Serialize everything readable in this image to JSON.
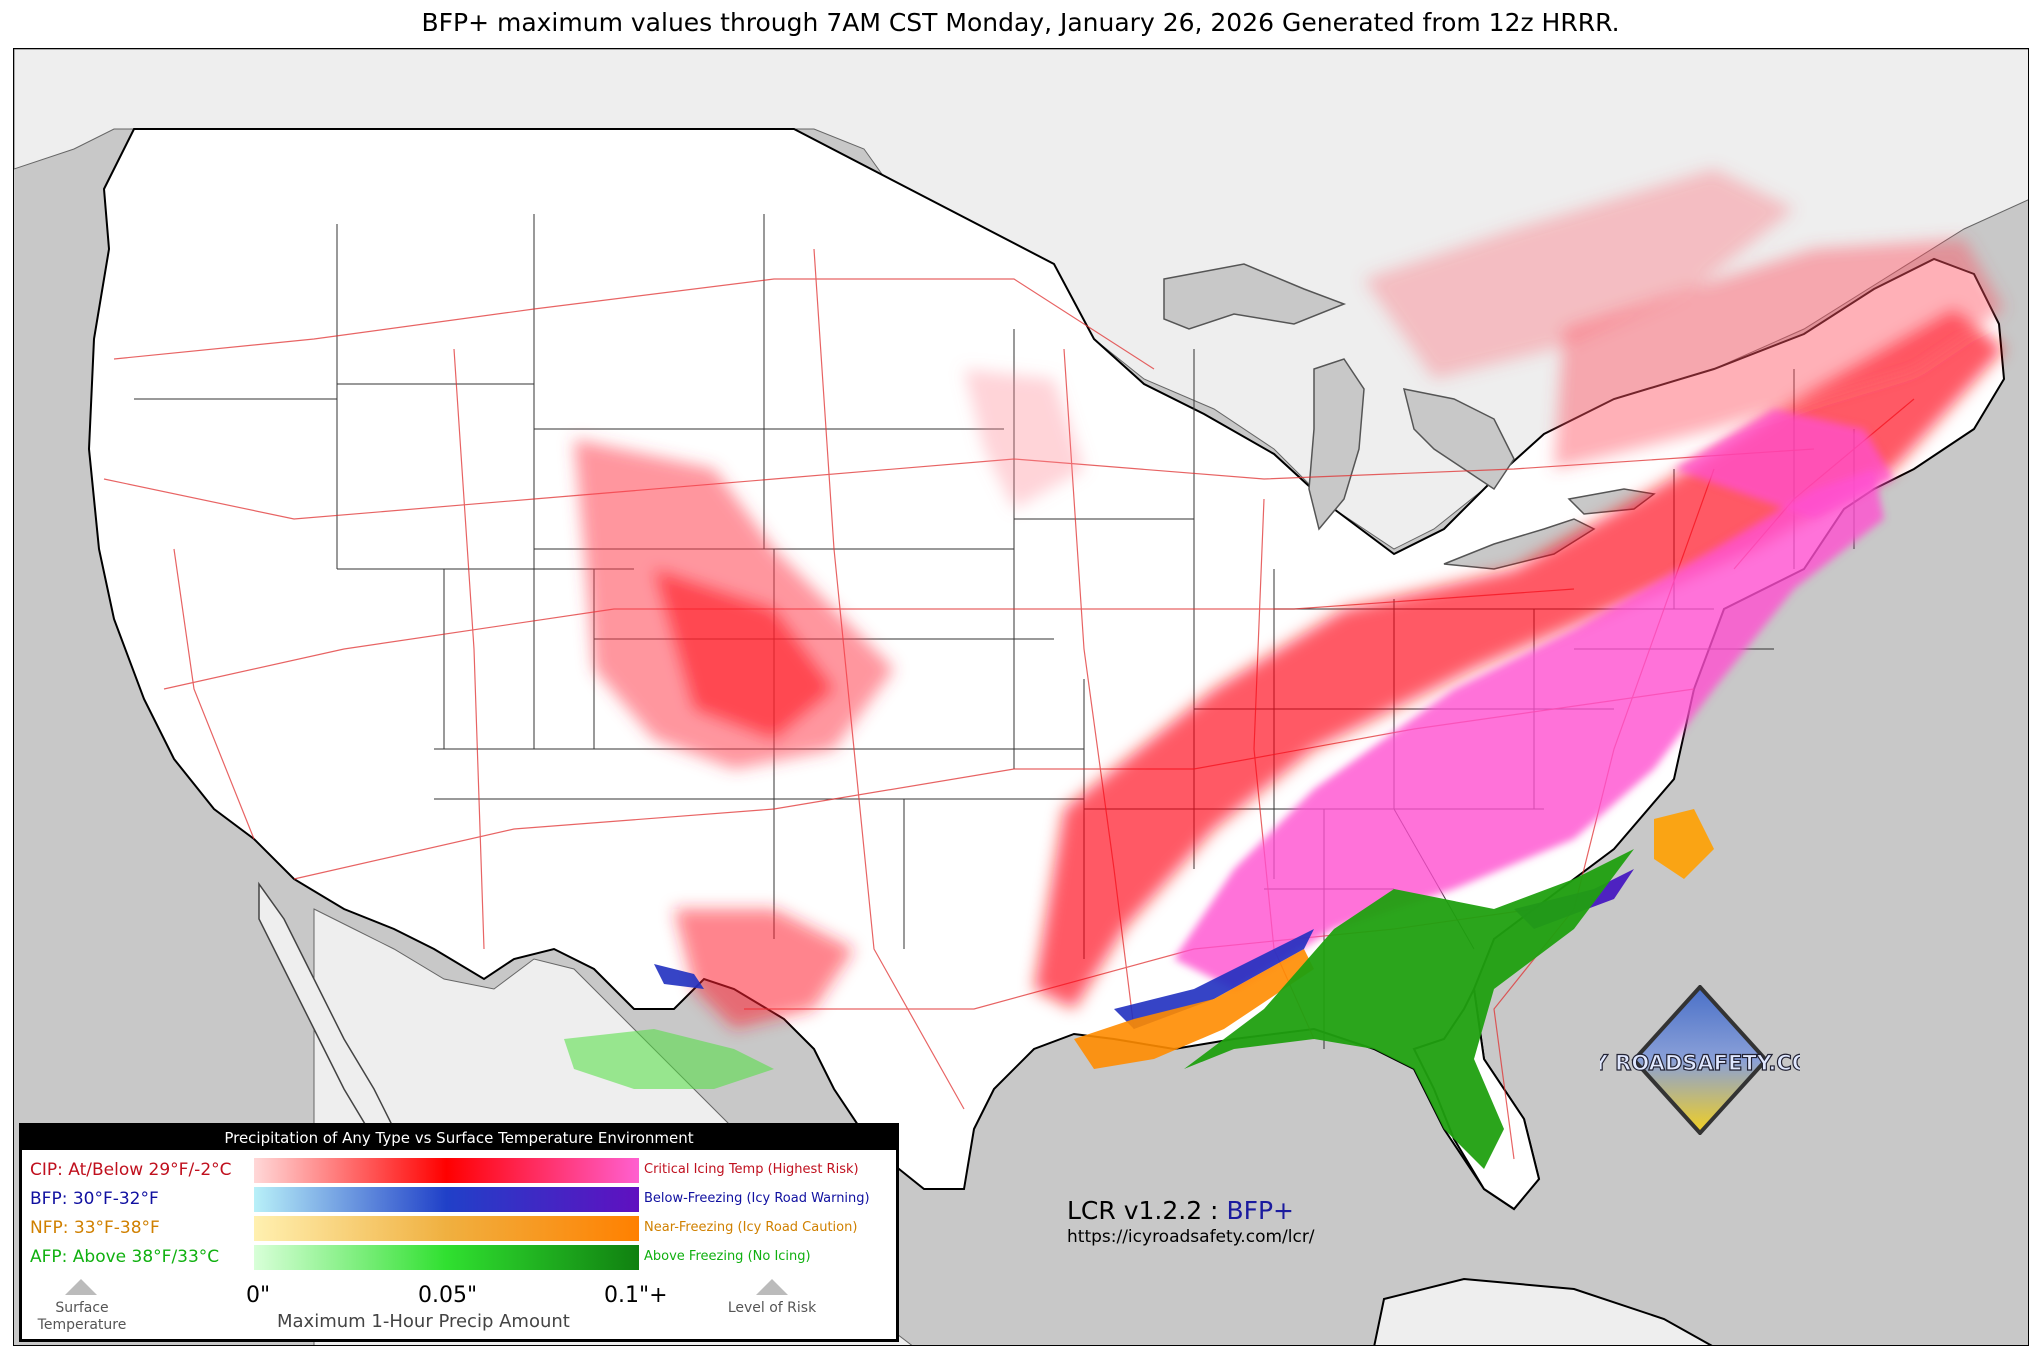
{
  "title": "BFP+ maximum values through 7AM CST Monday, January 26, 2026 Generated from 12z HRRR.",
  "legend": {
    "header": "Precipitation of Any Type vs Surface Temperature Environment",
    "rows": [
      {
        "label": "CIP: At/Below 29°F/-2°C",
        "desc": "Critical Icing Temp (Highest Risk)",
        "color": "#c0101e",
        "stops": [
          "#ffd8d8",
          "#ff0000",
          "#ff60d0"
        ]
      },
      {
        "label": "BFP: 30°F-32°F",
        "desc": "Below-Freezing (Icy Road Warning)",
        "color": "#1010a0",
        "stops": [
          "#b8f0f8",
          "#2040c8",
          "#6010c0"
        ]
      },
      {
        "label": "NFP: 33°F-38°F",
        "desc": "Near-Freezing (Icy Road Caution)",
        "color": "#d08000",
        "stops": [
          "#fff0b0",
          "#f0b040",
          "#ff8000"
        ]
      },
      {
        "label": "AFP: Above 38°F/33°C",
        "desc": "Above Freezing (No Icing)",
        "color": "#10b010",
        "stops": [
          "#d8ffd8",
          "#30e030",
          "#108010"
        ]
      }
    ],
    "ticks": [
      "0\"",
      "0.05\"",
      "0.1\"+"
    ],
    "axis_label": "Maximum 1-Hour Precip Amount",
    "left_label": "Surface Temperature",
    "right_label": "Level of Risk"
  },
  "version": {
    "prefix": "LCR v1.2.2 :",
    "product": "BFP+",
    "url": "https://icyroadsafety.com/lcr/"
  },
  "logo": {
    "text": "ICY ROADSAFETY.COM",
    "icon": "road-hazard-icon"
  },
  "colors": {
    "ocean": "#c8c8c8",
    "land": "#ffffff",
    "canada_mexico": "#eeeeee",
    "roads": "#e03030",
    "borders": "#000000"
  }
}
